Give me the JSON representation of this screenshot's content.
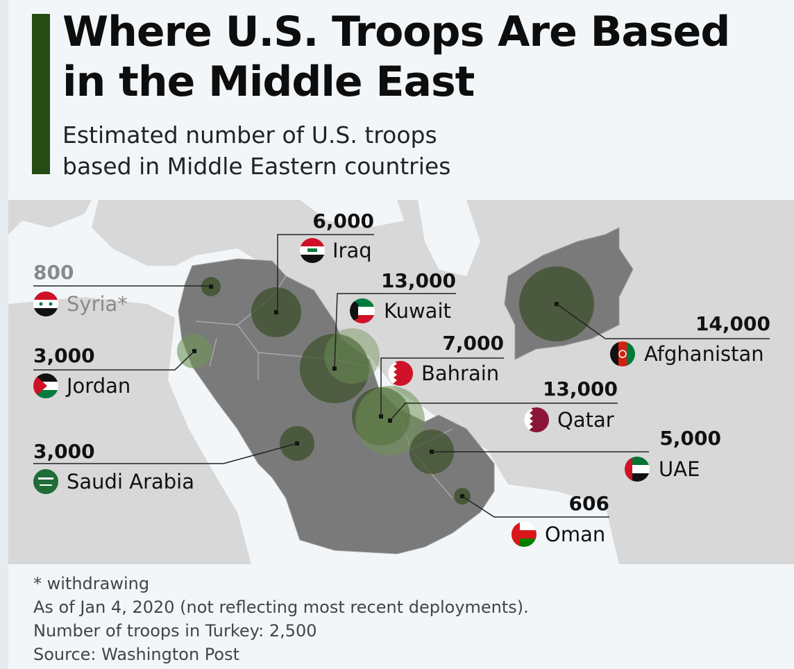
{
  "title": "Where U.S. Troops Are Based in the Middle East",
  "subtitle_line1": "Estimated number of U.S. troops",
  "subtitle_line2": "based in Middle Eastern countries",
  "colors": {
    "accent": "#274b14",
    "bubble": "#40532f",
    "bubble_light": "#6f9456",
    "region": "#7a7a7a",
    "land": "#d8d8d8",
    "sea": "#f2f6f9",
    "muted_text": "#8a8a8a"
  },
  "countries": [
    {
      "id": "syria",
      "name": "Syria*",
      "value": "800",
      "troops": 800,
      "flag": "syria-flag-icon",
      "muted": true
    },
    {
      "id": "jordan",
      "name": "Jordan",
      "value": "3,000",
      "troops": 3000,
      "flag": "jordan-flag-icon"
    },
    {
      "id": "saudi",
      "name": "Saudi Arabia",
      "value": "3,000",
      "troops": 3000,
      "flag": "saudi-arabia-flag-icon"
    },
    {
      "id": "iraq",
      "name": "Iraq",
      "value": "6,000",
      "troops": 6000,
      "flag": "iraq-flag-icon"
    },
    {
      "id": "kuwait",
      "name": "Kuwait",
      "value": "13,000",
      "troops": 13000,
      "flag": "kuwait-flag-icon"
    },
    {
      "id": "bahrain",
      "name": "Bahrain",
      "value": "7,000",
      "troops": 7000,
      "flag": "bahrain-flag-icon"
    },
    {
      "id": "qatar",
      "name": "Qatar",
      "value": "13,000",
      "troops": 13000,
      "flag": "qatar-flag-icon"
    },
    {
      "id": "uae",
      "name": "UAE",
      "value": "5,000",
      "troops": 5000,
      "flag": "uae-flag-icon"
    },
    {
      "id": "oman",
      "name": "Oman",
      "value": "606",
      "troops": 606,
      "flag": "oman-flag-icon"
    },
    {
      "id": "afghanistan",
      "name": "Afghanistan",
      "value": "14,000",
      "troops": 14000,
      "flag": "afghanistan-flag-icon"
    }
  ],
  "notes": [
    "* withdrawing",
    "As of Jan 4, 2020 (not reflecting most recent deployments).",
    "Number of troops in Turkey: 2,500",
    "Source: Washington Post"
  ]
}
